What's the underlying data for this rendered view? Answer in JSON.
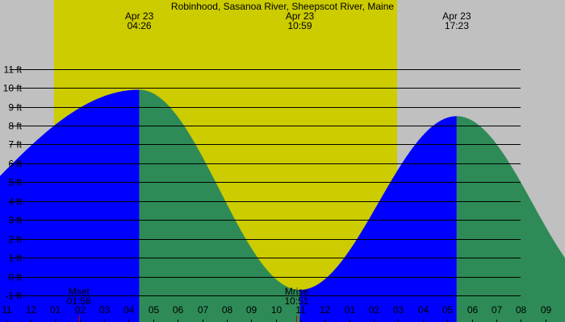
{
  "chart_data": {
    "type": "area",
    "title": "Robinhood, Sasanoa River, Sheepscot River, Maine",
    "xlabel": "",
    "ylabel": "",
    "x_unit": "hour",
    "x_range": [
      22.75,
      45.8
    ],
    "ylim": [
      -2.4,
      14.65
    ],
    "y_ticks": [
      -1,
      0,
      1,
      2,
      3,
      4,
      5,
      6,
      7,
      8,
      9,
      10,
      11
    ],
    "y_tick_labels": [
      "-1 ft",
      "0 ft",
      "1 ft",
      "2 ft",
      "3 ft",
      "4 ft",
      "5 ft",
      "6 ft",
      "7 ft",
      "8 ft",
      "9 ft",
      "10 ft",
      "11 ft"
    ],
    "grid": true,
    "daylight": {
      "start": 24.95,
      "end": 38.95,
      "color": "#cccc00"
    },
    "background_color": "#c0c0c0",
    "rising_color": "#0000ff",
    "falling_color": "#2e8b57",
    "tide_events": [
      {
        "x": 15.9,
        "y": -0.8
      },
      {
        "x": 28.433,
        "y": 9.9
      },
      {
        "x": 34.983,
        "y": -0.7
      },
      {
        "x": 41.383,
        "y": 8.5
      },
      {
        "x": 47.6,
        "y": -0.8
      }
    ],
    "peak_labels": [
      {
        "x": 28.433,
        "date": "Apr 23",
        "time": "04:26"
      },
      {
        "x": 34.983,
        "date": "Apr 23",
        "time": "10:59"
      },
      {
        "x": 41.383,
        "date": "Apr 23",
        "time": "17:23"
      }
    ],
    "moon_events": [
      {
        "x": 25.967,
        "label": "Mset",
        "time": "01:58"
      },
      {
        "x": 34.85,
        "label": "Mrise",
        "time": "10:51"
      }
    ],
    "x_ticks": [
      {
        "x": 23,
        "label": "11"
      },
      {
        "x": 24,
        "label": "12"
      },
      {
        "x": 25,
        "label": "01"
      },
      {
        "x": 26,
        "label": "02"
      },
      {
        "x": 27,
        "label": "03"
      },
      {
        "x": 28,
        "label": "04"
      },
      {
        "x": 29,
        "label": "05"
      },
      {
        "x": 30,
        "label": "06"
      },
      {
        "x": 31,
        "label": "07"
      },
      {
        "x": 32,
        "label": "08"
      },
      {
        "x": 33,
        "label": "09"
      },
      {
        "x": 34,
        "label": "10"
      },
      {
        "x": 35,
        "label": "11"
      },
      {
        "x": 36,
        "label": "12"
      },
      {
        "x": 37,
        "label": "01"
      },
      {
        "x": 38,
        "label": "02"
      },
      {
        "x": 39,
        "label": "03"
      },
      {
        "x": 40,
        "label": "04"
      },
      {
        "x": 41,
        "label": "05"
      },
      {
        "x": 42,
        "label": "06"
      },
      {
        "x": 43,
        "label": "07"
      },
      {
        "x": 44,
        "label": "08"
      },
      {
        "x": 45,
        "label": "09"
      }
    ]
  }
}
